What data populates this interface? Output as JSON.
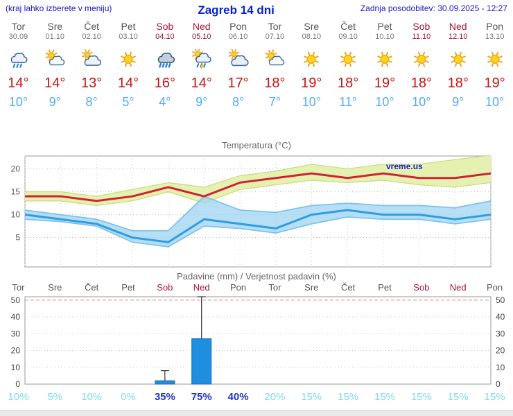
{
  "header": {
    "left_note": "(kraj lahko izberete v meniju)",
    "title": "Zagreb 14 dni",
    "updated": "Zadnja posodobitev: 30.09.2025 - 12:27"
  },
  "days": [
    {
      "name": "Tor",
      "date": "30.09",
      "weekend": false,
      "icon": "rain",
      "tmax": "14°",
      "tmin": "10°"
    },
    {
      "name": "Sre",
      "date": "01.10",
      "weekend": false,
      "icon": "partly",
      "tmax": "14°",
      "tmin": "9°"
    },
    {
      "name": "Čet",
      "date": "02.10",
      "weekend": false,
      "icon": "mostly",
      "tmax": "13°",
      "tmin": "8°"
    },
    {
      "name": "Pet",
      "date": "03.10",
      "weekend": false,
      "icon": "sunny",
      "tmax": "14°",
      "tmin": "5°"
    },
    {
      "name": "Sob",
      "date": "04.10",
      "weekend": true,
      "icon": "heavy-rain",
      "tmax": "16°",
      "tmin": "4°"
    },
    {
      "name": "Ned",
      "date": "05.10",
      "weekend": true,
      "icon": "sun-rain",
      "tmax": "14°",
      "tmin": "9°"
    },
    {
      "name": "Pon",
      "date": "06.10",
      "weekend": false,
      "icon": "cloudy",
      "tmax": "17°",
      "tmin": "8°"
    },
    {
      "name": "Tor",
      "date": "07.10",
      "weekend": false,
      "icon": "partly",
      "tmax": "18°",
      "tmin": "7°"
    },
    {
      "name": "Sre",
      "date": "08.10",
      "weekend": false,
      "icon": "sunny",
      "tmax": "19°",
      "tmin": "10°"
    },
    {
      "name": "Čet",
      "date": "09.10",
      "weekend": false,
      "icon": "sunny",
      "tmax": "18°",
      "tmin": "11°"
    },
    {
      "name": "Pet",
      "date": "10.10",
      "weekend": false,
      "icon": "sunny",
      "tmax": "19°",
      "tmin": "10°"
    },
    {
      "name": "Sob",
      "date": "11.10",
      "weekend": true,
      "icon": "sunny",
      "tmax": "18°",
      "tmin": "10°"
    },
    {
      "name": "Ned",
      "date": "12.10",
      "weekend": true,
      "icon": "sunny",
      "tmax": "18°",
      "tmin": "9°"
    },
    {
      "name": "Pon",
      "date": "13.10",
      "weekend": false,
      "icon": "sunny",
      "tmax": "19°",
      "tmin": "10°"
    }
  ],
  "colors": {
    "accent_blue": "#1616cc",
    "weekday": "#555555",
    "weekend": "#aa1133",
    "tmax_red": "#cc1111",
    "tmin_blue": "#52aaf5",
    "max_line": "#cf2233",
    "min_line": "#2d9de2",
    "max_band": "#e4f0ac",
    "min_band": "#9ed3f0",
    "bar_fill": "#1e8fe0",
    "prob_low": "#7fd9e8",
    "prob_high": "#2136c4"
  },
  "chart_data": [
    {
      "type": "line",
      "title": "Temperatura (°C)",
      "watermark": "vreme.us",
      "x": [
        "Tor 30.09",
        "Sre 01.10",
        "Čet 02.10",
        "Pet 03.10",
        "Sob 04.10",
        "Ned 05.10",
        "Pon 06.10",
        "Tor 07.10",
        "Sre 08.10",
        "Čet 09.10",
        "Pet 10.10",
        "Sob 11.10",
        "Ned 12.10",
        "Pon 13.10"
      ],
      "ylim": [
        -1.4,
        22.8
      ],
      "yticks": [
        5,
        10,
        15,
        20
      ],
      "grid": true,
      "series": [
        {
          "name": "max",
          "values": [
            14,
            14,
            13,
            14,
            16,
            14,
            17,
            18,
            19,
            18,
            19,
            18,
            18,
            19
          ]
        },
        {
          "name": "max_range_high",
          "values": [
            15,
            15,
            14,
            15.5,
            17,
            16,
            18.5,
            19.5,
            21,
            20,
            21,
            21,
            22,
            23
          ]
        },
        {
          "name": "max_range_low",
          "values": [
            13,
            13,
            12,
            13,
            15,
            12.5,
            15.5,
            16.5,
            17.5,
            17,
            17.5,
            16.5,
            16,
            17
          ]
        },
        {
          "name": "min",
          "values": [
            10,
            9,
            8,
            5,
            4,
            9,
            8,
            7,
            10,
            11,
            10,
            10,
            9,
            10
          ]
        },
        {
          "name": "min_range_high",
          "values": [
            11,
            10,
            9,
            6.5,
            6.5,
            14,
            11,
            10.5,
            12,
            12.5,
            12,
            12,
            11.5,
            13
          ]
        },
        {
          "name": "min_range_low",
          "values": [
            9,
            8.5,
            7.5,
            4,
            3,
            7.5,
            7,
            6,
            8,
            9.5,
            9,
            9,
            8,
            9
          ]
        }
      ]
    },
    {
      "type": "bar",
      "title": "Padavine (mm) / Verjetnost padavin (%)",
      "categories": [
        "Tor",
        "Sre",
        "Čet",
        "Pet",
        "Sob",
        "Ned",
        "Pon",
        "Tor",
        "Sre",
        "Čet",
        "Pet",
        "Sob",
        "Ned",
        "Pon"
      ],
      "weekend": [
        false,
        false,
        false,
        false,
        true,
        true,
        false,
        false,
        false,
        false,
        false,
        true,
        true,
        false
      ],
      "values": [
        0,
        0,
        0,
        0,
        2,
        27,
        0,
        0,
        0,
        0,
        0,
        0,
        0,
        0
      ],
      "range_high": [
        0,
        0,
        0,
        0,
        8,
        52,
        0,
        0,
        0,
        0,
        0,
        0,
        0,
        0
      ],
      "probabilities": [
        10,
        5,
        10,
        0,
        35,
        75,
        40,
        20,
        15,
        15,
        15,
        15,
        15,
        15
      ],
      "ylim": [
        0,
        52
      ],
      "yticks": [
        0,
        10,
        20,
        30,
        40,
        50
      ],
      "grid": true
    }
  ]
}
